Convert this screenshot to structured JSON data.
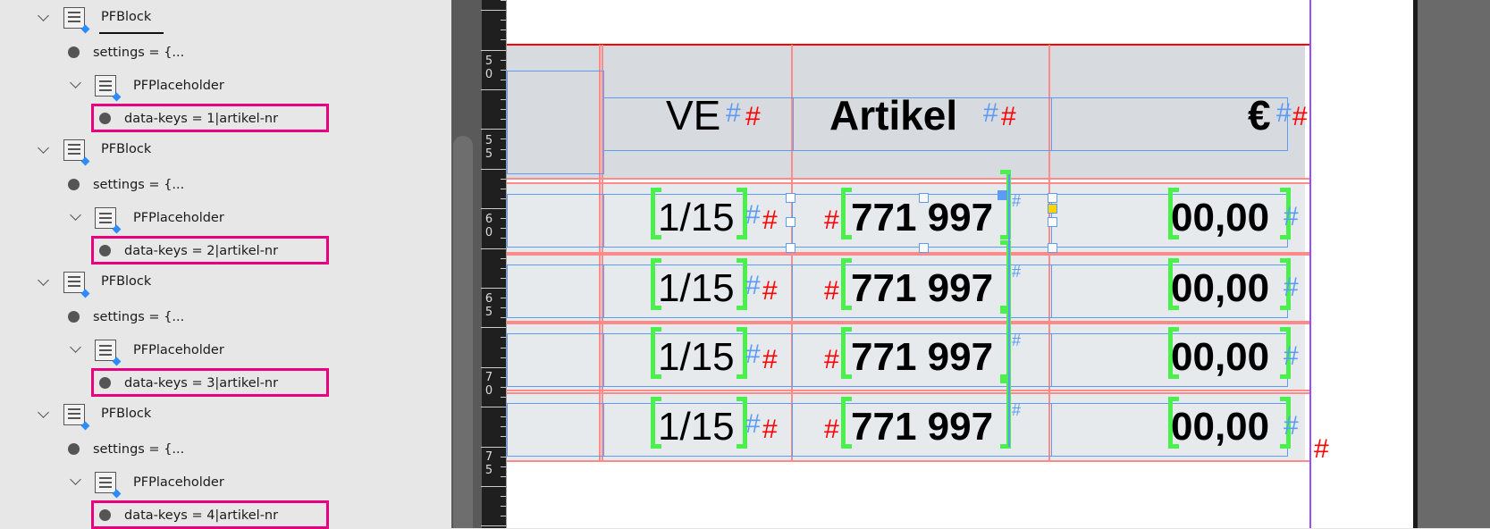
{
  "tree": [
    {
      "block": "PFBlock",
      "settings": "settings = {...",
      "placeholder": "PFPlaceholder",
      "data_keys": "data-keys = 1|artikel-nr"
    },
    {
      "block": "PFBlock",
      "settings": "settings = {...",
      "placeholder": "PFPlaceholder",
      "data_keys": "data-keys = 2|artikel-nr"
    },
    {
      "block": "PFBlock",
      "settings": "settings = {...",
      "placeholder": "PFPlaceholder",
      "data_keys": "data-keys = 3|artikel-nr"
    },
    {
      "block": "PFBlock",
      "settings": "settings = {...",
      "placeholder": "PFPlaceholder",
      "data_keys": "data-keys = 4|artikel-nr"
    }
  ],
  "ruler": [
    "50",
    "55",
    "60",
    "65",
    "70",
    "75"
  ],
  "table": {
    "headers": [
      "VE",
      "Artikel",
      "€"
    ],
    "rows": [
      [
        "1/15",
        "771 997",
        "00,00"
      ],
      [
        "1/15",
        "771 997",
        "00,00"
      ],
      [
        "1/15",
        "771 997",
        "00,00"
      ],
      [
        "1/15",
        "771 997",
        "00,00"
      ]
    ]
  },
  "markers": {
    "hash": "#"
  },
  "colors": {
    "highlight": "#e8007d",
    "frame": "#5d9cf5",
    "tag_bracket": "#4cf04c",
    "guide": "#9a4dff",
    "overset": "#ff0000"
  }
}
